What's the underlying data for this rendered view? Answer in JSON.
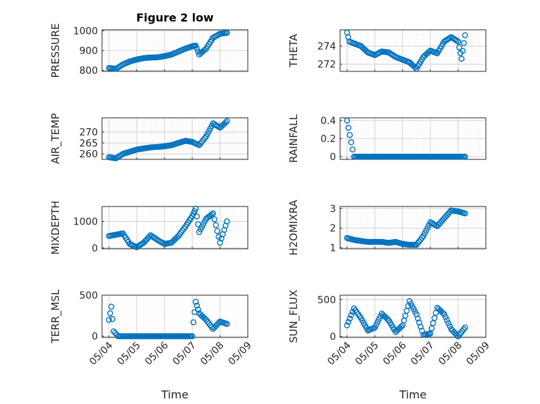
{
  "figure": {
    "title": "Figure 2 low",
    "xlabel": "Time"
  },
  "chart_data": [
    {
      "type": "scatter",
      "title": "Figure 2 low",
      "ylabel": "PRESSURE",
      "ylim": [
        795,
        1005
      ],
      "yticks": [
        "800",
        "900",
        "1000"
      ],
      "ytick_values": [
        800,
        900,
        1000
      ],
      "xlabel": "",
      "grid": true,
      "color": "#0072BD",
      "x": [
        "05/04 00:00",
        "05/04 06:00",
        "05/04 12:00",
        "05/04 18:00",
        "05/05 00:00",
        "05/05 06:00",
        "05/05 12:00",
        "05/05 18:00",
        "05/06 00:00",
        "05/06 06:00",
        "05/06 12:00",
        "05/06 18:00",
        "05/07 00:00",
        "05/07 03:00",
        "05/07 06:00",
        "05/07 12:00",
        "05/07 18:00",
        "05/08 00:00",
        "05/08 06:00"
      ],
      "y": [
        812,
        808,
        830,
        845,
        855,
        862,
        865,
        866,
        872,
        880,
        895,
        910,
        922,
        925,
        880,
        910,
        965,
        985,
        990
      ]
    },
    {
      "type": "scatter",
      "ylabel": "THETA",
      "ylim": [
        271.2,
        275.8
      ],
      "yticks": [
        "272",
        "274"
      ],
      "ytick_values": [
        272,
        274
      ],
      "grid": true,
      "color": "#0072BD",
      "x": [
        "05/04 00:00",
        "05/04 02:00",
        "05/04 06:00",
        "05/04 12:00",
        "05/04 18:00",
        "05/05 00:00",
        "05/05 06:00",
        "05/05 12:00",
        "05/05 18:00",
        "05/06 00:00",
        "05/06 06:00",
        "05/06 12:00",
        "05/06 18:00",
        "05/07 00:00",
        "05/07 06:00",
        "05/07 12:00",
        "05/07 18:00",
        "05/08 00:00",
        "05/08 03:00",
        "05/08 06:00"
      ],
      "y": [
        275.5,
        274.5,
        274.3,
        274.0,
        273.3,
        273.0,
        273.4,
        273.3,
        272.8,
        272.5,
        272.2,
        271.5,
        272.8,
        273.5,
        273.2,
        274.5,
        275.0,
        274.5,
        272.6,
        275.2
      ]
    },
    {
      "type": "scatter",
      "ylabel": "AIR_TEMP",
      "ylim": [
        257.5,
        276.5
      ],
      "yticks": [
        "260",
        "265",
        "270"
      ],
      "ytick_values": [
        260,
        265,
        270
      ],
      "grid": true,
      "color": "#0072BD",
      "x": [
        "05/04 00:00",
        "05/04 06:00",
        "05/04 12:00",
        "05/04 18:00",
        "05/05 00:00",
        "05/05 06:00",
        "05/05 12:00",
        "05/05 18:00",
        "05/06 00:00",
        "05/06 06:00",
        "05/06 12:00",
        "05/06 18:00",
        "05/07 00:00",
        "05/07 06:00",
        "05/07 12:00",
        "05/07 18:00",
        "05/08 00:00",
        "05/08 06:00"
      ],
      "y": [
        258.5,
        258.0,
        260.0,
        261.0,
        262.0,
        262.5,
        263.0,
        263.2,
        263.5,
        264.0,
        265.0,
        266.0,
        265.5,
        264.0,
        268.0,
        274.0,
        272.0,
        275.0
      ]
    },
    {
      "type": "scatter",
      "ylabel": "RAINFALL",
      "ylim": [
        -0.03,
        0.43
      ],
      "yticks": [
        "0",
        "0.2",
        "0.4"
      ],
      "ytick_values": [
        0,
        0.2,
        0.4
      ],
      "grid": true,
      "color": "#0072BD",
      "x": [
        "05/04 00:00",
        "05/04 06:00",
        "05/04 12:00",
        "05/04 18:00",
        "05/05 00:00",
        "05/05 06:00",
        "05/05 12:00",
        "05/05 18:00",
        "05/06 00:00",
        "05/06 06:00",
        "05/06 12:00",
        "05/06 18:00",
        "05/07 00:00",
        "05/07 06:00",
        "05/07 12:00",
        "05/07 18:00",
        "05/08 00:00",
        "05/08 06:00"
      ],
      "y": [
        0.4,
        0,
        0,
        0,
        0,
        0,
        0,
        0,
        0,
        0,
        0,
        0,
        0,
        0,
        0,
        0,
        0,
        0
      ]
    },
    {
      "type": "scatter",
      "ylabel": "MIXDEPTH",
      "ylim": [
        -30,
        1560
      ],
      "yticks": [
        "0",
        "1000"
      ],
      "ytick_values": [
        0,
        1000
      ],
      "grid": true,
      "color": "#0072BD",
      "x": [
        "05/04 00:00",
        "05/04 06:00",
        "05/04 12:00",
        "05/04 18:00",
        "05/05 00:00",
        "05/05 06:00",
        "05/05 12:00",
        "05/05 18:00",
        "05/06 00:00",
        "05/06 06:00",
        "05/06 12:00",
        "05/06 18:00",
        "05/07 00:00",
        "05/07 03:00",
        "05/07 06:00",
        "05/07 12:00",
        "05/07 18:00",
        "05/08 00:00",
        "05/08 06:00"
      ],
      "y": [
        450,
        500,
        550,
        150,
        30,
        200,
        480,
        300,
        150,
        200,
        450,
        800,
        1200,
        1480,
        600,
        1100,
        1300,
        200,
        1000
      ]
    },
    {
      "type": "scatter",
      "ylabel": "H2OMIXRA",
      "ylim": [
        0.95,
        3.1
      ],
      "yticks": [
        "1",
        "2",
        "3"
      ],
      "ytick_values": [
        1,
        2,
        3
      ],
      "grid": true,
      "color": "#0072BD",
      "x": [
        "05/04 00:00",
        "05/04 06:00",
        "05/04 12:00",
        "05/04 18:00",
        "05/05 00:00",
        "05/05 06:00",
        "05/05 12:00",
        "05/05 18:00",
        "05/06 00:00",
        "05/06 06:00",
        "05/06 12:00",
        "05/06 18:00",
        "05/07 00:00",
        "05/07 06:00",
        "05/07 12:00",
        "05/07 18:00",
        "05/08 00:00",
        "05/08 06:00"
      ],
      "y": [
        1.5,
        1.4,
        1.35,
        1.3,
        1.3,
        1.3,
        1.25,
        1.3,
        1.2,
        1.15,
        1.15,
        1.6,
        2.3,
        2.1,
        2.5,
        2.9,
        2.85,
        2.75
      ]
    },
    {
      "type": "scatter",
      "ylabel": "TERR_MSL",
      "ylim": [
        -15,
        500
      ],
      "yticks": [
        "0",
        "500"
      ],
      "ytick_values": [
        0,
        500
      ],
      "grid": true,
      "color": "#0072BD",
      "x": [
        "05/04 00:00",
        "05/04 02:00",
        "05/04 04:00",
        "05/04 08:00",
        "05/04 18:00",
        "05/05 06:00",
        "05/05 18:00",
        "05/06 06:00",
        "05/06 18:00",
        "05/07 00:00",
        "05/07 01:00",
        "05/07 03:00",
        "05/07 06:00",
        "05/07 12:00",
        "05/07 18:00",
        "05/08 00:00",
        "05/08 06:00"
      ],
      "y": [
        200,
        360,
        60,
        0,
        0,
        0,
        0,
        0,
        0,
        0,
        170,
        420,
        280,
        200,
        90,
        180,
        150
      ]
    },
    {
      "type": "scatter",
      "ylabel": "SUN_FLUX",
      "ylim": [
        -15,
        560
      ],
      "yticks": [
        "0",
        "500"
      ],
      "ytick_values": [
        0,
        500
      ],
      "grid": true,
      "color": "#0072BD",
      "x": [
        "05/04 00:00",
        "05/04 06:00",
        "05/04 12:00",
        "05/04 18:00",
        "05/05 00:00",
        "05/05 06:00",
        "05/05 12:00",
        "05/05 18:00",
        "05/06 00:00",
        "05/06 06:00",
        "05/06 12:00",
        "05/06 18:00",
        "05/07 00:00",
        "05/07 06:00",
        "05/07 12:00",
        "05/07 18:00",
        "05/08 00:00",
        "05/08 06:00"
      ],
      "y": [
        150,
        380,
        250,
        80,
        120,
        310,
        220,
        60,
        150,
        480,
        300,
        20,
        40,
        390,
        300,
        100,
        0,
        120
      ]
    }
  ],
  "xaxis": {
    "ticks": [
      "05/04",
      "05/05",
      "05/06",
      "05/07",
      "05/08",
      "05/09"
    ],
    "tick_values": [
      "05/04 00:00",
      "05/05 00:00",
      "05/06 00:00",
      "05/07 00:00",
      "05/08 00:00",
      "05/09 00:00"
    ],
    "range": [
      "05/03 18:00",
      "05/09 00:00"
    ]
  }
}
